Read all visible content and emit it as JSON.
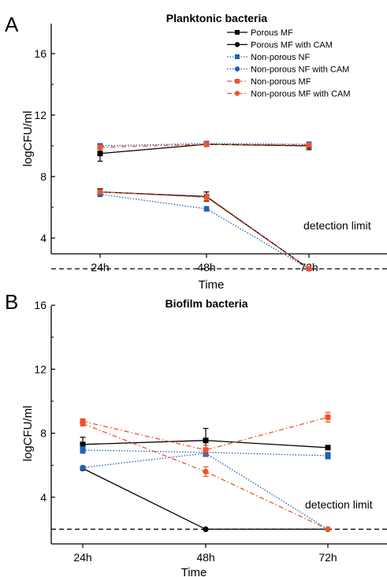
{
  "chart_data": [
    {
      "panel_label": "A",
      "type": "line",
      "title": "Planktonic bacteria",
      "xlabel": "Time",
      "ylabel": "logCFU/ml",
      "categories": [
        "24h",
        "48h",
        "72h"
      ],
      "ylim": [
        0,
        16
      ],
      "yticks": [
        "4",
        "8",
        "12",
        "16"
      ],
      "grid": false,
      "legend_position": "top-right",
      "threshold": {
        "value": 2,
        "label": "detection limit",
        "color": "#000000"
      },
      "series": [
        {
          "name": "Porous MF",
          "values": [
            9.5,
            10.1,
            10.0
          ],
          "errors": [
            0.5,
            0.15,
            0.25
          ],
          "color": "#000000",
          "marker": "square",
          "line": "solid"
        },
        {
          "name": "Porous MF with CAM",
          "values": [
            7.0,
            6.7,
            2.0
          ],
          "errors": [
            0.2,
            0.3,
            0.0
          ],
          "color": "#000000",
          "marker": "circle",
          "line": "solid"
        },
        {
          "name": "Non-porous NF",
          "values": [
            10.0,
            10.15,
            10.1
          ],
          "errors": [
            0.1,
            0.1,
            0.1
          ],
          "color": "#1f5fbf",
          "marker": "square",
          "line": "dotted"
        },
        {
          "name": "Non-porous NF with CAM",
          "values": [
            6.85,
            5.9,
            2.0
          ],
          "errors": [
            0.15,
            0.15,
            0.0
          ],
          "color": "#1f5fbf",
          "marker": "circle",
          "line": "dotted"
        },
        {
          "name": "Non-porous MF",
          "values": [
            9.9,
            10.1,
            10.05
          ],
          "errors": [
            0.1,
            0.1,
            0.1
          ],
          "color": "#f0522a",
          "marker": "square",
          "line": "dashdot"
        },
        {
          "name": "Non-porous MF with CAM",
          "values": [
            7.0,
            6.65,
            2.0
          ],
          "errors": [
            0.15,
            0.2,
            0.0
          ],
          "color": "#f0522a",
          "marker": "circle",
          "line": "dashdot"
        }
      ]
    },
    {
      "panel_label": "B",
      "type": "line",
      "title": "Biofilm bacteria",
      "xlabel": "Time",
      "ylabel": "logCFU/ml",
      "categories": [
        "24h",
        "48h",
        "72h"
      ],
      "ylim": [
        0,
        16
      ],
      "yticks": [
        "4",
        "8",
        "12",
        "16"
      ],
      "grid": false,
      "threshold": {
        "value": 2,
        "label": "detection limit",
        "color": "#000000"
      },
      "series": [
        {
          "name": "Porous MF",
          "values": [
            7.3,
            7.55,
            7.1
          ],
          "errors": [
            0.45,
            0.75,
            0.1
          ],
          "color": "#000000",
          "marker": "square",
          "line": "solid"
        },
        {
          "name": "Porous MF with CAM",
          "values": [
            5.8,
            2.0,
            2.0
          ],
          "errors": [
            0.1,
            0.0,
            0.0
          ],
          "color": "#000000",
          "marker": "circle",
          "line": "solid"
        },
        {
          "name": "Non-porous NF",
          "values": [
            6.95,
            6.8,
            6.6
          ],
          "errors": [
            0.2,
            0.2,
            0.2
          ],
          "color": "#1f5fbf",
          "marker": "square",
          "line": "dotted"
        },
        {
          "name": "Non-porous NF with CAM",
          "values": [
            5.85,
            6.75,
            2.0
          ],
          "errors": [
            0.1,
            0.2,
            0.0
          ],
          "color": "#1f5fbf",
          "marker": "circle",
          "line": "dotted"
        },
        {
          "name": "Non-porous MF",
          "values": [
            8.75,
            6.95,
            9.0
          ],
          "errors": [
            0.15,
            0.3,
            0.3
          ],
          "color": "#f0522a",
          "marker": "square",
          "line": "dashdot"
        },
        {
          "name": "Non-porous MF with CAM",
          "values": [
            8.6,
            5.6,
            2.0
          ],
          "errors": [
            0.15,
            0.3,
            0.0
          ],
          "color": "#f0522a",
          "marker": "circle",
          "line": "dashdot"
        }
      ]
    }
  ]
}
